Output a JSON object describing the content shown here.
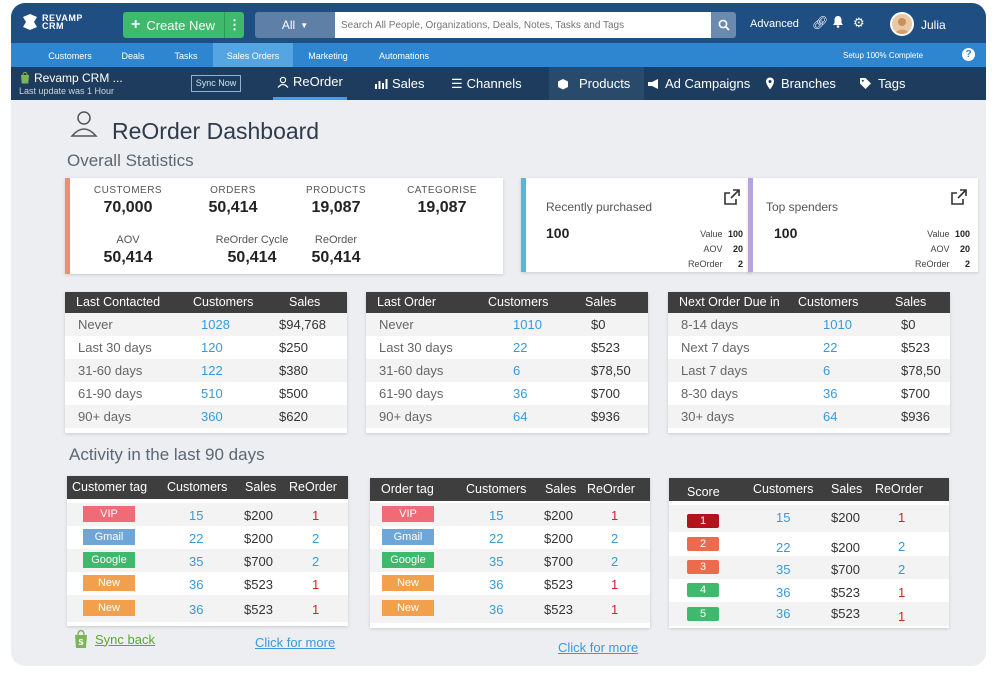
{
  "app": {
    "brand_line1": "REVAMP",
    "brand_line2": "CRM"
  },
  "topbar": {
    "create_label": "Create New",
    "scope": "All",
    "search_placeholder": "Search All People, Organizations, Deals, Notes, Tasks and Tags",
    "advanced": "Advanced",
    "user": "Julia"
  },
  "menu": {
    "items": [
      "Customers",
      "Deals",
      "Tasks",
      "Sales Orders",
      "Marketing",
      "Automations"
    ],
    "active": "Sales Orders",
    "setup": "Setup 100% Complete"
  },
  "subnav": {
    "crm_name": "Revamp CRM ...",
    "last_update": "Last update was 1 Hour",
    "sync_now": "Sync Now",
    "tabs": [
      "ReOrder",
      "Sales",
      "Channels",
      "Products",
      "Ad Campaigns",
      "Branches",
      "Tags"
    ],
    "active_tab": "ReOrder"
  },
  "dashboard": {
    "title": "ReOrder Dashboard",
    "overall": "Overall Statistics",
    "activity": "Activity in the last 90 days"
  },
  "stats": {
    "customers": {
      "label": "CUSTOMERS",
      "value": "70,000"
    },
    "orders": {
      "label": "ORDERS",
      "value": "50,414"
    },
    "products": {
      "label": "PRODUCTS",
      "value": "19,087"
    },
    "categorise": {
      "label": "CATEGORISE",
      "value": "19,087"
    },
    "aov": {
      "label": "AOV",
      "value": "50,414"
    },
    "cycle": {
      "label": "ReOrder Cycle",
      "value": "50,414"
    },
    "reorder": {
      "label": "ReOrder",
      "value": "50,414"
    },
    "accent_color": "#f28c6b"
  },
  "recently_purchased": {
    "title": "Recently purchased",
    "count": "100",
    "value_label": "Value",
    "value": "100",
    "aov_label": "AOV",
    "aov": "20",
    "reorder_label": "ReOrder",
    "reorder": "2",
    "accent_color": "#4fb8e0"
  },
  "top_spenders": {
    "title": "Top spenders",
    "count": "100",
    "value_label": "Value",
    "value": "100",
    "aov_label": "AOV",
    "aov": "20",
    "reorder_label": "ReOrder",
    "reorder": "2",
    "accent_color": "#b9a3de"
  },
  "last_contacted": {
    "headers": [
      "Last Contacted",
      "Customers",
      "Sales"
    ],
    "rows": [
      [
        "Never",
        "1028",
        "$94,768"
      ],
      [
        "Last 30 days",
        "120",
        "$250"
      ],
      [
        "31-60 days",
        "122",
        "$380"
      ],
      [
        "61-90 days",
        "510",
        "$500"
      ],
      [
        "90+ days",
        "360",
        "$620"
      ]
    ]
  },
  "last_order": {
    "headers": [
      "Last Order",
      "Customers",
      "Sales"
    ],
    "rows": [
      [
        "Never",
        "1010",
        "$0"
      ],
      [
        "Last 30 days",
        "22",
        "$523"
      ],
      [
        "31-60 days",
        "6",
        "$78,50"
      ],
      [
        "61-90 days",
        "36",
        "$700"
      ],
      [
        "90+ days",
        "64",
        "$936"
      ]
    ]
  },
  "next_order": {
    "headers": [
      "Next Order Due in",
      "Customers",
      "Sales"
    ],
    "rows": [
      [
        "8-14 days",
        "1010",
        "$0"
      ],
      [
        "Next 7 days",
        "22",
        "$523"
      ],
      [
        "Last 7 days",
        "6",
        "$78,50"
      ],
      [
        "8-30 days",
        "36",
        "$700"
      ],
      [
        "30+ days",
        "64",
        "$936"
      ]
    ]
  },
  "customer_tag": {
    "headers": [
      "Customer tag",
      "Customers",
      "Sales",
      "ReOrder"
    ],
    "rows": [
      {
        "tag": "VIP",
        "color": "#ef6b78",
        "customers": "15",
        "sales": "$200",
        "reorder": "1"
      },
      {
        "tag": "Gmail",
        "color": "#6fa6d8",
        "customers": "22",
        "sales": "$200",
        "reorder": "2"
      },
      {
        "tag": "Google",
        "color": "#3fb96b",
        "customers": "35",
        "sales": "$700",
        "reorder": "2"
      },
      {
        "tag": "New",
        "color": "#f2a04b",
        "customers": "36",
        "sales": "$523",
        "reorder": "1"
      },
      {
        "tag": "New",
        "color": "#f2a04b",
        "customers": "36",
        "sales": "$523",
        "reorder": "1"
      }
    ]
  },
  "order_tag": {
    "headers": [
      "Order tag",
      "Customers",
      "Sales",
      "ReOrder"
    ],
    "rows": [
      {
        "tag": "VIP",
        "color": "#ef6b78",
        "customers": "15",
        "sales": "$200",
        "reorder": "1"
      },
      {
        "tag": "Gmail",
        "color": "#6fa6d8",
        "customers": "22",
        "sales": "$200",
        "reorder": "2"
      },
      {
        "tag": "Google",
        "color": "#3fb96b",
        "customers": "35",
        "sales": "$700",
        "reorder": "2"
      },
      {
        "tag": "New",
        "color": "#f2a04b",
        "customers": "36",
        "sales": "$523",
        "reorder": "1"
      },
      {
        "tag": "New",
        "color": "#f2a04b",
        "customers": "36",
        "sales": "$523",
        "reorder": "1"
      }
    ]
  },
  "score": {
    "headers": [
      "Score",
      "Customers",
      "Sales",
      "ReOrder"
    ],
    "rows": [
      {
        "score": "1",
        "color": "#b3141c",
        "customers": "15",
        "sales": "$200",
        "reorder": "1"
      },
      {
        "score": "2",
        "color": "#ee6a4f",
        "customers": "22",
        "sales": "$200",
        "reorder": "2"
      },
      {
        "score": "3",
        "color": "#ee6a4f",
        "customers": "35",
        "sales": "$700",
        "reorder": "2"
      },
      {
        "score": "4",
        "color": "#3fb96b",
        "customers": "36",
        "sales": "$523",
        "reorder": "1"
      },
      {
        "score": "5",
        "color": "#3fb96b",
        "customers": "36",
        "sales": "$523",
        "reorder": "1"
      }
    ]
  },
  "footer": {
    "sync_back": "Sync back",
    "click_more": "Click for more"
  }
}
